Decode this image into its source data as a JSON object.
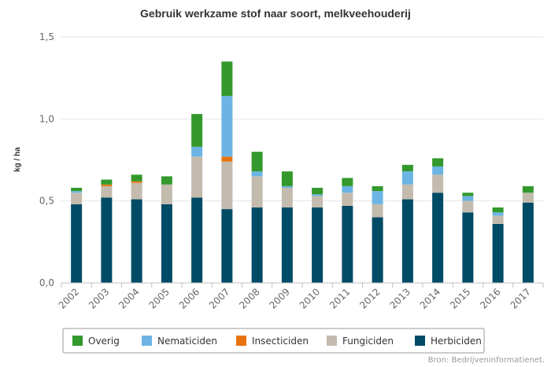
{
  "chart_data": {
    "type": "bar",
    "stacked": true,
    "title": "Gebruik werkzame stof naar soort, melkveehouderij",
    "xlabel": "",
    "ylabel": "kg / ha",
    "ylim": [
      0,
      1.5
    ],
    "yticks": [
      "0,0",
      "0,5",
      "1,0",
      "1,5"
    ],
    "ytick_values": [
      0,
      0.5,
      1.0,
      1.5
    ],
    "grid": true,
    "legend_position": "bottom",
    "credit": "Bron: Bedrijveninformatienet.",
    "categories": [
      "2002",
      "2003",
      "2004",
      "2005",
      "2006",
      "2007",
      "2008",
      "2009",
      "2010",
      "2011",
      "2012",
      "2013",
      "2014",
      "2015",
      "2016",
      "2017"
    ],
    "series": [
      {
        "name": "Herbiciden",
        "color": "#004b66",
        "values": [
          0.48,
          0.52,
          0.51,
          0.48,
          0.52,
          0.45,
          0.46,
          0.46,
          0.46,
          0.47,
          0.4,
          0.51,
          0.55,
          0.43,
          0.36,
          0.49
        ]
      },
      {
        "name": "Fungiciden",
        "color": "#c3bbae",
        "values": [
          0.07,
          0.07,
          0.1,
          0.12,
          0.25,
          0.29,
          0.19,
          0.12,
          0.07,
          0.08,
          0.08,
          0.09,
          0.11,
          0.07,
          0.05,
          0.06
        ]
      },
      {
        "name": "Insecticiden",
        "color": "#e8730c",
        "values": [
          0.0,
          0.01,
          0.01,
          0.0,
          0.0,
          0.03,
          0.0,
          0.0,
          0.0,
          0.0,
          0.0,
          0.0,
          0.0,
          0.0,
          0.0,
          0.0
        ]
      },
      {
        "name": "Nematiciden",
        "color": "#6cb4e4",
        "values": [
          0.01,
          0.0,
          0.0,
          0.0,
          0.06,
          0.37,
          0.03,
          0.01,
          0.01,
          0.04,
          0.08,
          0.08,
          0.05,
          0.03,
          0.02,
          0.0
        ]
      },
      {
        "name": "Overig",
        "color": "#33992c",
        "values": [
          0.02,
          0.03,
          0.04,
          0.05,
          0.2,
          0.21,
          0.12,
          0.09,
          0.04,
          0.05,
          0.03,
          0.04,
          0.05,
          0.02,
          0.03,
          0.04
        ]
      }
    ],
    "legend_order": [
      "Overig",
      "Nematiciden",
      "Insecticiden",
      "Fungiciden",
      "Herbiciden"
    ]
  }
}
